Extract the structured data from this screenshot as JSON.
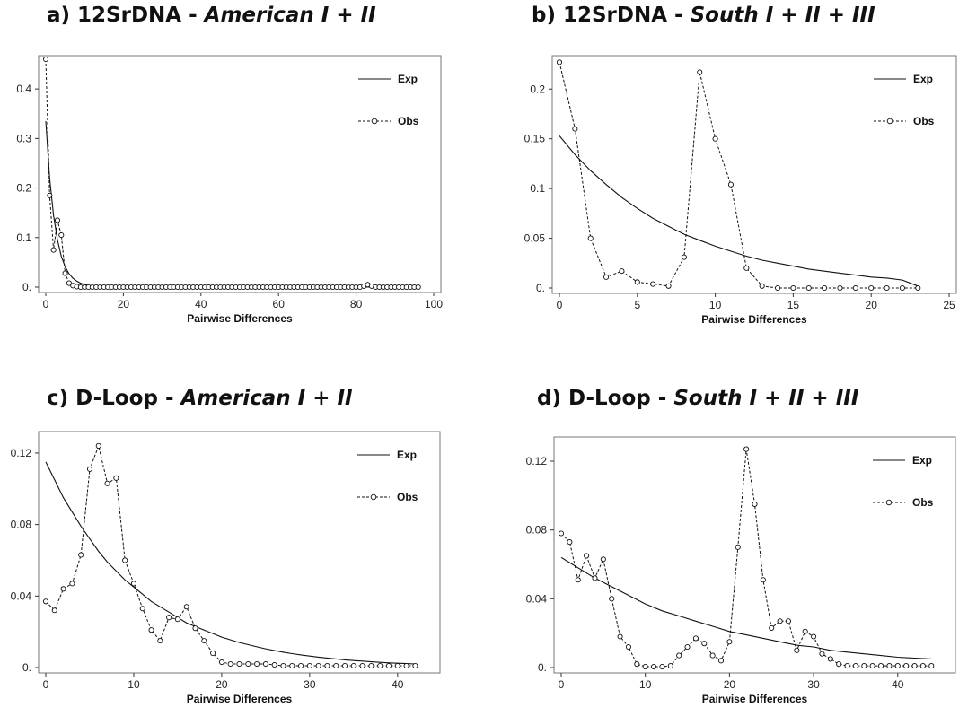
{
  "chart_data": [
    {
      "id": "a",
      "type": "line",
      "title_prefix": "a) 12SrDNA - ",
      "title_italic": "American I + II",
      "xlabel": "Pairwise Differences",
      "ylabel": "",
      "xlim": [
        0,
        100
      ],
      "ylim": [
        0,
        0.46
      ],
      "xticks": [
        0,
        20,
        40,
        60,
        80,
        100
      ],
      "yticks": [
        0,
        0.1,
        0.2,
        0.3,
        0.4
      ],
      "ytick_labels": [
        "0.",
        "0.1",
        "0.2",
        "0.3",
        "0.4"
      ],
      "legend": {
        "exp": "Exp",
        "obs": "Obs",
        "position": "top-right"
      },
      "exp": {
        "x": [
          0,
          1,
          2,
          3,
          4,
          5,
          6,
          7,
          8,
          9,
          10,
          12,
          14,
          16,
          20,
          30,
          40,
          60,
          80,
          96
        ],
        "y": [
          0.335,
          0.22,
          0.145,
          0.095,
          0.062,
          0.041,
          0.027,
          0.018,
          0.012,
          0.008,
          0.005,
          0.002,
          0.001,
          0.0005,
          0.0002,
          0,
          0,
          0,
          0,
          0
        ]
      },
      "obs": {
        "x": [
          0,
          1,
          2,
          3,
          4,
          5,
          6,
          7,
          8,
          9,
          10,
          11,
          12,
          13,
          14,
          15,
          16,
          17,
          18,
          19,
          20,
          21,
          22,
          23,
          24,
          25,
          26,
          27,
          28,
          29,
          30,
          31,
          32,
          33,
          34,
          35,
          36,
          37,
          38,
          39,
          40,
          41,
          42,
          43,
          44,
          45,
          46,
          47,
          48,
          49,
          50,
          51,
          52,
          53,
          54,
          55,
          56,
          57,
          58,
          59,
          60,
          61,
          62,
          63,
          64,
          65,
          66,
          67,
          68,
          69,
          70,
          71,
          72,
          73,
          74,
          75,
          76,
          77,
          78,
          79,
          80,
          81,
          82,
          83,
          84,
          85,
          86,
          87,
          88,
          89,
          90,
          91,
          92,
          93,
          94,
          95,
          96
        ],
        "y": [
          0.46,
          0.185,
          0.075,
          0.135,
          0.105,
          0.028,
          0.008,
          0.003,
          0.001,
          0,
          0,
          0,
          0,
          0,
          0,
          0,
          0,
          0,
          0,
          0,
          0,
          0,
          0,
          0,
          0,
          0,
          0,
          0,
          0,
          0,
          0,
          0,
          0,
          0,
          0,
          0,
          0,
          0,
          0,
          0,
          0,
          0,
          0,
          0,
          0,
          0,
          0,
          0,
          0,
          0,
          0,
          0,
          0,
          0,
          0,
          0,
          0,
          0,
          0,
          0,
          0,
          0,
          0,
          0,
          0,
          0,
          0,
          0,
          0,
          0,
          0,
          0,
          0,
          0,
          0,
          0,
          0,
          0,
          0,
          0,
          0,
          0,
          0.002,
          0.005,
          0.002,
          0,
          0,
          0,
          0,
          0,
          0,
          0,
          0,
          0,
          0,
          0,
          0
        ]
      }
    },
    {
      "id": "b",
      "type": "line",
      "title_prefix": "b) 12SrDNA - ",
      "title_italic": "South I + II + III",
      "xlabel": "Pairwise Differences",
      "ylabel": "",
      "xlim": [
        0,
        25
      ],
      "ylim": [
        0,
        0.23
      ],
      "xticks": [
        0,
        5,
        10,
        15,
        20,
        25
      ],
      "yticks": [
        0,
        0.05,
        0.1,
        0.15,
        0.2
      ],
      "ytick_labels": [
        "0.",
        "0.05",
        "0.1",
        "0.15",
        "0.2"
      ],
      "legend": {
        "exp": "Exp",
        "obs": "Obs",
        "position": "top-right"
      },
      "exp": {
        "x": [
          0,
          1,
          2,
          3,
          4,
          5,
          6,
          7,
          8,
          9,
          10,
          11,
          12,
          13,
          14,
          15,
          16,
          17,
          18,
          19,
          20,
          21,
          22,
          23
        ],
        "y": [
          0.153,
          0.134,
          0.118,
          0.104,
          0.091,
          0.08,
          0.07,
          0.062,
          0.054,
          0.048,
          0.042,
          0.037,
          0.032,
          0.028,
          0.025,
          0.022,
          0.019,
          0.017,
          0.015,
          0.013,
          0.011,
          0.01,
          0.008,
          0.002
        ]
      },
      "obs": {
        "x": [
          0,
          1,
          2,
          3,
          4,
          5,
          6,
          7,
          8,
          9,
          10,
          11,
          12,
          13,
          14,
          15,
          16,
          17,
          18,
          19,
          20,
          21,
          22,
          23
        ],
        "y": [
          0.227,
          0.16,
          0.05,
          0.011,
          0.017,
          0.006,
          0.004,
          0.002,
          0.031,
          0.217,
          0.15,
          0.104,
          0.02,
          0.002,
          0,
          0,
          0,
          0,
          0,
          0,
          0,
          0,
          0,
          0
        ]
      }
    },
    {
      "id": "c",
      "type": "line",
      "title_prefix": "c) D-Loop - ",
      "title_italic": "American I + II",
      "xlabel": "Pairwise Differences",
      "ylabel": "",
      "xlim": [
        0,
        44
      ],
      "ylim": [
        0,
        0.13
      ],
      "xticks": [
        0,
        10,
        20,
        30,
        40
      ],
      "yticks": [
        0,
        0.04,
        0.08,
        0.12
      ],
      "ytick_labels": [
        "0.",
        "0.04",
        "0.08",
        "0.12"
      ],
      "legend": {
        "exp": "Exp",
        "obs": "Obs",
        "position": "top-right"
      },
      "exp": {
        "x": [
          0,
          1,
          2,
          3,
          4,
          5,
          6,
          7,
          8,
          9,
          10,
          11,
          12,
          13,
          14,
          15,
          16,
          17,
          18,
          19,
          20,
          21,
          22,
          23,
          24,
          25,
          26,
          27,
          28,
          29,
          30,
          31,
          32,
          33,
          34,
          35,
          36,
          37,
          38,
          39,
          40,
          41,
          42
        ],
        "y": [
          0.115,
          0.105,
          0.095,
          0.087,
          0.079,
          0.072,
          0.065,
          0.059,
          0.054,
          0.049,
          0.045,
          0.041,
          0.037,
          0.034,
          0.031,
          0.028,
          0.025,
          0.023,
          0.021,
          0.019,
          0.017,
          0.0155,
          0.014,
          0.0128,
          0.0116,
          0.0105,
          0.0095,
          0.0086,
          0.0078,
          0.0071,
          0.0064,
          0.0058,
          0.0053,
          0.0048,
          0.0043,
          0.0039,
          0.0036,
          0.0032,
          0.0029,
          0.0026,
          0.0024,
          0.0022,
          0.002
        ]
      },
      "obs": {
        "x": [
          0,
          1,
          2,
          3,
          4,
          5,
          6,
          7,
          8,
          9,
          10,
          11,
          12,
          13,
          14,
          15,
          16,
          17,
          18,
          19,
          20,
          21,
          22,
          23,
          24,
          25,
          26,
          27,
          28,
          29,
          30,
          31,
          32,
          33,
          34,
          35,
          36,
          37,
          38,
          39,
          40,
          41,
          42
        ],
        "y": [
          0.037,
          0.032,
          0.044,
          0.047,
          0.063,
          0.111,
          0.124,
          0.103,
          0.106,
          0.06,
          0.047,
          0.033,
          0.021,
          0.015,
          0.028,
          0.027,
          0.034,
          0.022,
          0.015,
          0.008,
          0.003,
          0.002,
          0.002,
          0.002,
          0.002,
          0.002,
          0.0015,
          0.001,
          0.001,
          0.001,
          0.001,
          0.001,
          0.001,
          0.001,
          0.001,
          0.001,
          0.001,
          0.001,
          0.001,
          0.001,
          0.001,
          0.001,
          0.001
        ]
      }
    },
    {
      "id": "d",
      "type": "line",
      "title_prefix": "d) D-Loop - ",
      "title_italic": "South I + II + III",
      "xlabel": "Pairwise Differences",
      "ylabel": "",
      "xlim": [
        0,
        46
      ],
      "ylim": [
        0,
        0.132
      ],
      "xticks": [
        0,
        10,
        20,
        30,
        40
      ],
      "yticks": [
        0,
        0.04,
        0.08,
        0.12
      ],
      "ytick_labels": [
        "0.",
        "0.04",
        "0.08",
        "0.12"
      ],
      "legend": {
        "exp": "Exp",
        "obs": "Obs",
        "position": "top-right"
      },
      "exp": {
        "x": [
          0,
          2,
          4,
          6,
          8,
          10,
          12,
          14,
          16,
          18,
          20,
          22,
          24,
          26,
          28,
          30,
          32,
          34,
          36,
          38,
          40,
          42,
          44
        ],
        "y": [
          0.064,
          0.058,
          0.052,
          0.047,
          0.042,
          0.037,
          0.033,
          0.03,
          0.027,
          0.024,
          0.021,
          0.019,
          0.017,
          0.015,
          0.013,
          0.012,
          0.01,
          0.009,
          0.008,
          0.007,
          0.006,
          0.0055,
          0.005
        ]
      },
      "obs": {
        "x": [
          0,
          1,
          2,
          3,
          4,
          5,
          6,
          7,
          8,
          9,
          10,
          11,
          12,
          13,
          14,
          15,
          16,
          17,
          18,
          19,
          20,
          21,
          22,
          23,
          24,
          25,
          26,
          27,
          28,
          29,
          30,
          31,
          32,
          33,
          34,
          35,
          36,
          37,
          38,
          39,
          40,
          41,
          42,
          43,
          44
        ],
        "y": [
          0.078,
          0.073,
          0.051,
          0.065,
          0.052,
          0.063,
          0.04,
          0.018,
          0.012,
          0.002,
          0.0005,
          0.0005,
          0.0005,
          0.001,
          0.007,
          0.012,
          0.017,
          0.014,
          0.007,
          0.004,
          0.015,
          0.07,
          0.127,
          0.095,
          0.051,
          0.023,
          0.027,
          0.027,
          0.01,
          0.021,
          0.018,
          0.008,
          0.005,
          0.002,
          0.001,
          0.001,
          0.001,
          0.001,
          0.001,
          0.001,
          0.001,
          0.001,
          0.001,
          0.001,
          0.001
        ]
      }
    }
  ]
}
